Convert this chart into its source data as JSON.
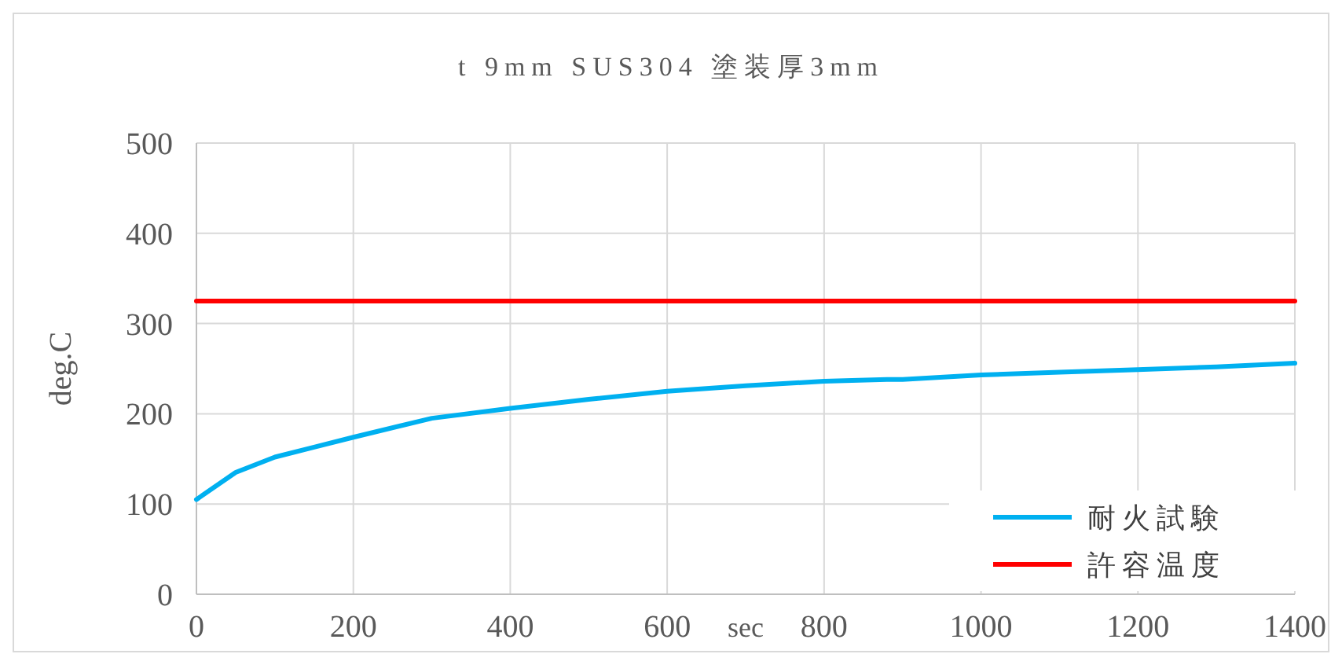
{
  "chart_data": {
    "type": "line",
    "title": "t 9mm SUS304 塗装厚3mm",
    "xlabel": "sec",
    "ylabel": "deg.C",
    "xlim": [
      0,
      1400
    ],
    "xticks": [
      0,
      200,
      400,
      600,
      800,
      1000,
      1200,
      1400
    ],
    "ylim": [
      0,
      500
    ],
    "yticks": [
      0,
      100,
      200,
      300,
      400,
      500
    ],
    "grid": true,
    "legend": "bottom right",
    "series": [
      {
        "name": "耐火試験",
        "color": "#00b0f0",
        "x": [
          0,
          50,
          100,
          150,
          200,
          300,
          400,
          500,
          600,
          700,
          800,
          880,
          900,
          1000,
          1100,
          1200,
          1300,
          1400
        ],
        "values": [
          105,
          135,
          152,
          163,
          174,
          195,
          206,
          216,
          225,
          231,
          236,
          238,
          238,
          243,
          246,
          249,
          252,
          256
        ]
      },
      {
        "name": "許容温度",
        "color": "#ff0000",
        "x": [
          0,
          1400
        ],
        "values": [
          325,
          325
        ]
      }
    ]
  }
}
